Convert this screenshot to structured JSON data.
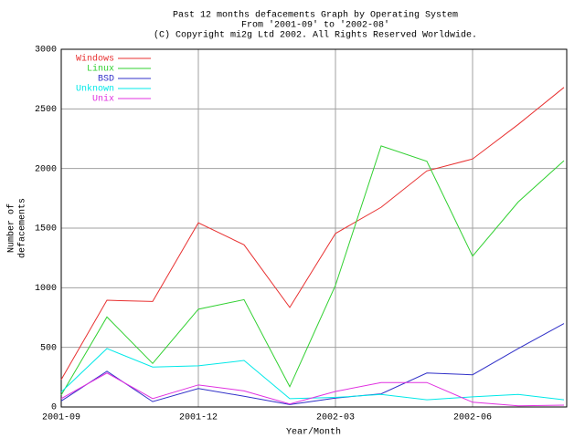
{
  "chart_data": {
    "type": "line",
    "title": [
      "Past 12 months defacements Graph by Operating System",
      "From '2001-09' to '2002-08'",
      "(C) Copyright mi2g Ltd 2002. All Rights Reserved Worldwide."
    ],
    "xlabel": "Year/Month",
    "ylabel": [
      "Number of",
      "defacements"
    ],
    "categories": [
      "2001-09",
      null,
      null,
      "2001-12",
      null,
      null,
      "2002-03",
      null,
      null,
      "2002-06",
      null,
      null
    ],
    "series": [
      {
        "name": "Windows",
        "color": "#e83030",
        "values": [
          230,
          895,
          885,
          1545,
          1360,
          835,
          1455,
          1675,
          1980,
          2080,
          2370,
          2680
        ]
      },
      {
        "name": "Linux",
        "color": "#30d030",
        "values": [
          100,
          755,
          365,
          820,
          900,
          170,
          1020,
          2190,
          2060,
          1265,
          1720,
          2065
        ]
      },
      {
        "name": "BSD",
        "color": "#3030c8",
        "values": [
          50,
          300,
          45,
          155,
          90,
          20,
          75,
          110,
          285,
          270,
          490,
          700
        ]
      },
      {
        "name": "Unknown",
        "color": "#00e8e8",
        "values": [
          125,
          490,
          335,
          345,
          390,
          70,
          80,
          105,
          60,
          85,
          105,
          60
        ]
      },
      {
        "name": "Unix",
        "color": "#e030e0",
        "values": [
          70,
          285,
          70,
          185,
          135,
          25,
          130,
          205,
          205,
          40,
          10,
          15
        ]
      }
    ],
    "ylim": [
      0,
      3000
    ],
    "yticks": [
      0,
      500,
      1000,
      1500,
      2000,
      2500,
      3000
    ],
    "grid": true
  }
}
